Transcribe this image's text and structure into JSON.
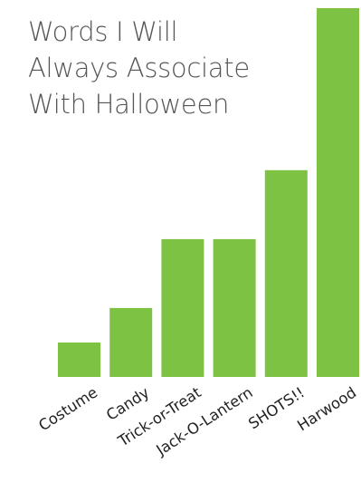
{
  "chart_data": {
    "type": "bar",
    "title": [
      "Words I Will",
      "Always Associate",
      "With Halloween"
    ],
    "categories": [
      "Costume",
      "Candy",
      "Trick-or-Treat",
      "Jack-O-Lantern",
      "SHOTS!!",
      "Harwood"
    ],
    "values": [
      1,
      2,
      4,
      4,
      6,
      10.7
    ],
    "xlabel": "",
    "ylabel": "",
    "ylim": [
      0,
      10.7
    ],
    "grid": false,
    "bar_color": "#7dc242",
    "title_color": "#555555",
    "tick_label_rotation": "-33deg"
  }
}
